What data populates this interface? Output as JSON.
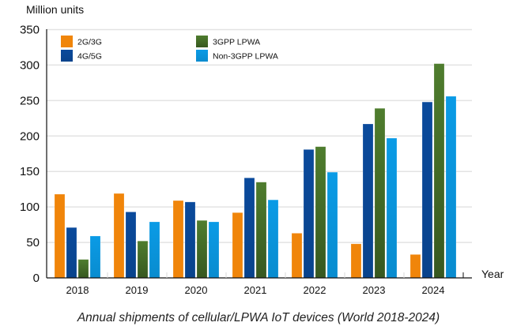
{
  "chart_data": {
    "type": "bar",
    "title": "Annual shipments of cellular/LPWA IoT devices (World 2018-2024)",
    "xlabel": "Year",
    "ylabel": "Million units",
    "ylim": [
      0,
      350
    ],
    "yticks": [
      0,
      50,
      100,
      150,
      200,
      250,
      300,
      350
    ],
    "grid": true,
    "legend_position": "top-left",
    "categories": [
      "2018",
      "2019",
      "2020",
      "2021",
      "2022",
      "2023",
      "2024"
    ],
    "series": [
      {
        "name": "2G/3G",
        "color": "#f0850a",
        "values": [
          118,
          119,
          109,
          92,
          63,
          48,
          33
        ]
      },
      {
        "name": "4G/5G",
        "color": "#0a4a9c",
        "values": [
          71,
          93,
          107,
          141,
          181,
          217,
          248
        ]
      },
      {
        "name": "3GPP LPWA",
        "color": "#4f7d2e",
        "values": [
          26,
          52,
          81,
          135,
          185,
          239,
          302
        ]
      },
      {
        "name": "Non-3GPP LPWA",
        "color": "#0a9be6",
        "values": [
          59,
          79,
          79,
          110,
          149,
          197,
          256
        ]
      }
    ]
  }
}
